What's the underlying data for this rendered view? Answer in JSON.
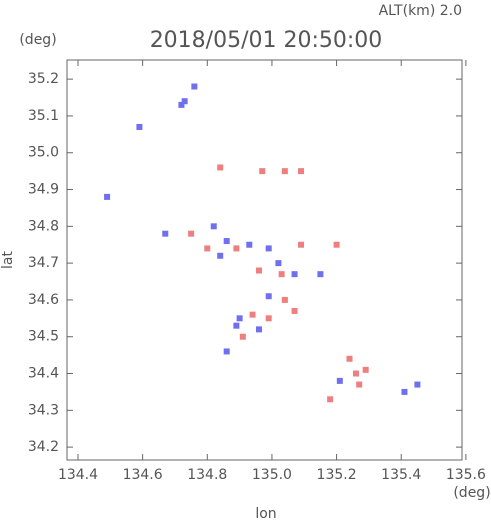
{
  "chart_data": {
    "type": "scatter",
    "title": "2018/05/01 20:50:00",
    "subtitle": "ALT(km) 2.0",
    "x_label": "lon",
    "x_unit": "(deg)",
    "y_label": "lat",
    "y_unit": "(deg)",
    "xlim": [
      134.366,
      135.588
    ],
    "ylim": [
      34.165,
      35.252
    ],
    "xticks": [
      134.4,
      134.6,
      134.8,
      {
        "value": 135,
        "label": "135.0"
      },
      135.2,
      135.4,
      135.6
    ],
    "yticks": [
      34.2,
      34.3,
      34.4,
      34.5,
      34.6,
      34.7,
      34.8,
      34.9,
      {
        "value": 35,
        "label": "35.0"
      },
      35.1,
      35.2
    ],
    "series": [
      {
        "color": "#6f6fef",
        "x": [
          134.73,
          134.76,
          134.72,
          134.59,
          134.49,
          134.67,
          134.82,
          134.86,
          134.93,
          134.99,
          135.07,
          135.15,
          134.99,
          134.9,
          134.89,
          134.86,
          135.21,
          135.45,
          135.41,
          134.84,
          134.96,
          135.02
        ],
        "values": [
          35.14,
          35.18,
          35.13,
          35.07,
          34.88,
          34.78,
          34.8,
          34.76,
          34.75,
          34.74,
          34.67,
          34.67,
          34.61,
          34.55,
          34.53,
          34.46,
          34.38,
          34.37,
          34.35,
          34.72,
          34.52,
          34.7
        ]
      },
      {
        "color": "#ef7f7f",
        "x": [
          134.84,
          134.97,
          135.04,
          135.09,
          134.75,
          134.89,
          135.09,
          135.2,
          134.96,
          135.03,
          135.04,
          135.07,
          134.91,
          134.99,
          135.24,
          135.26,
          135.29,
          135.18,
          135.27,
          134.8,
          134.94
        ],
        "values": [
          34.96,
          34.95,
          34.95,
          34.95,
          34.78,
          34.74,
          34.75,
          34.75,
          34.68,
          34.67,
          34.6,
          34.57,
          34.5,
          34.55,
          34.44,
          34.4,
          34.41,
          34.33,
          34.37,
          34.74,
          34.56
        ]
      }
    ]
  }
}
